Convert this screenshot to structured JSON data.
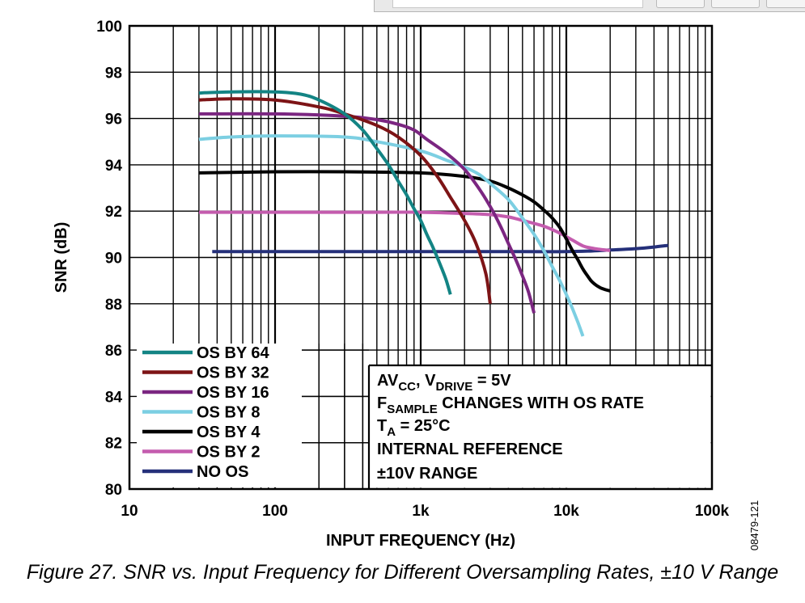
{
  "chart_data": {
    "type": "line",
    "xlabel": "INPUT FREQUENCY (Hz)",
    "ylabel": "SNR (dB)",
    "x_scale": "log",
    "xlim": [
      10,
      100000
    ],
    "ylim": [
      80,
      100
    ],
    "x_ticks": [
      {
        "value": 10,
        "label": "10"
      },
      {
        "value": 100,
        "label": "100"
      },
      {
        "value": 1000,
        "label": "1k"
      },
      {
        "value": 10000,
        "label": "10k"
      },
      {
        "value": 100000,
        "label": "100k"
      }
    ],
    "y_ticks": [
      {
        "value": 80,
        "label": "80"
      },
      {
        "value": 82,
        "label": "82"
      },
      {
        "value": 84,
        "label": "84"
      },
      {
        "value": 86,
        "label": "86"
      },
      {
        "value": 88,
        "label": "88"
      },
      {
        "value": 90,
        "label": "90"
      },
      {
        "value": 92,
        "label": "92"
      },
      {
        "value": 94,
        "label": "94"
      },
      {
        "value": 96,
        "label": "96"
      },
      {
        "value": 98,
        "label": "98"
      },
      {
        "value": 100,
        "label": "100"
      }
    ],
    "grid": true,
    "legend_position": "bottom-left",
    "series": [
      {
        "name": "OS BY 64",
        "color": "#138484",
        "x": [
          30,
          50,
          100,
          150,
          200,
          300,
          400,
          500,
          600,
          700,
          800,
          900,
          1000,
          1100,
          1200,
          1300,
          1400,
          1500,
          1600
        ],
        "y": [
          97.1,
          97.15,
          97.15,
          97.05,
          96.8,
          96.2,
          95.5,
          94.7,
          94.0,
          93.3,
          92.7,
          92.1,
          91.6,
          91.0,
          90.5,
          90.0,
          89.5,
          89.0,
          88.4
        ]
      },
      {
        "name": "OS BY 32",
        "color": "#7d1416",
        "x": [
          30,
          50,
          100,
          200,
          300,
          500,
          700,
          1000,
          1300,
          1600,
          2000,
          2400,
          2800,
          3000
        ],
        "y": [
          96.8,
          96.85,
          96.8,
          96.5,
          96.2,
          95.7,
          95.2,
          94.4,
          93.5,
          92.6,
          91.6,
          90.6,
          89.3,
          88.0
        ]
      },
      {
        "name": "OS BY 16",
        "color": "#7b2681",
        "x": [
          30,
          100,
          300,
          500,
          700,
          900,
          1100,
          1500,
          2000,
          2500,
          3000,
          3500,
          4000,
          4500,
          5000,
          5500,
          6000
        ],
        "y": [
          96.2,
          96.2,
          96.1,
          95.95,
          95.75,
          95.5,
          95.1,
          94.5,
          93.8,
          93.0,
          92.2,
          91.4,
          90.6,
          89.9,
          89.2,
          88.5,
          87.6
        ]
      },
      {
        "name": "OS BY 8",
        "color": "#7ccfe2",
        "x": [
          30,
          50,
          100,
          300,
          500,
          1000,
          1500,
          2000,
          2500,
          3000,
          4000,
          5000,
          6000,
          7000,
          8000,
          9000,
          10000,
          11000,
          12000,
          13000
        ],
        "y": [
          95.1,
          95.2,
          95.25,
          95.2,
          95.0,
          94.6,
          94.2,
          93.9,
          93.6,
          93.2,
          92.5,
          91.7,
          91.0,
          90.3,
          89.6,
          89.0,
          88.4,
          87.8,
          87.2,
          86.6
        ]
      },
      {
        "name": "OS BY 4",
        "color": "#000000",
        "x": [
          30,
          100,
          300,
          1000,
          2000,
          3000,
          4000,
          5000,
          6000,
          7000,
          8000,
          9000,
          10000,
          11000,
          12000,
          13000,
          14000,
          15000,
          17000,
          20000
        ],
        "y": [
          93.65,
          93.7,
          93.7,
          93.65,
          93.5,
          93.3,
          93.0,
          92.7,
          92.4,
          92.05,
          91.7,
          91.3,
          90.8,
          90.3,
          89.9,
          89.5,
          89.2,
          88.95,
          88.7,
          88.55
        ]
      },
      {
        "name": "OS BY 2",
        "color": "#c45cae",
        "x": [
          30,
          100,
          500,
          1000,
          2000,
          3000,
          4000,
          5000,
          7000,
          9000,
          11000,
          13000,
          15000,
          17000,
          20000
        ],
        "y": [
          91.95,
          91.95,
          91.95,
          91.95,
          91.9,
          91.85,
          91.75,
          91.6,
          91.35,
          91.05,
          90.75,
          90.5,
          90.4,
          90.35,
          90.3
        ]
      },
      {
        "name": "NO OS",
        "color": "#25307a",
        "x": [
          37,
          100,
          1000,
          5000,
          10000,
          15000,
          20000,
          30000,
          40000,
          50000
        ],
        "y": [
          90.25,
          90.25,
          90.25,
          90.25,
          90.25,
          90.28,
          90.32,
          90.38,
          90.45,
          90.52
        ]
      }
    ],
    "annotations": [
      "AV_CC, V_DRIVE = 5V",
      "F_SAMPLE CHANGES WITH OS RATE",
      "T_A = 25°C",
      "INTERNAL REFERENCE",
      "±10V RANGE"
    ]
  },
  "note": {
    "line1": {
      "a": "AV",
      "a_sub": "CC",
      "b": ", V",
      "b_sub": "DRIVE",
      "c": " = 5V"
    },
    "line2": {
      "a": "F",
      "a_sub": "SAMPLE",
      "b": " CHANGES WITH OS RATE"
    },
    "line3": {
      "a": "T",
      "a_sub": "A",
      "b": " = 25°C"
    },
    "line4": "INTERNAL REFERENCE",
    "line5": "±10V RANGE"
  },
  "figure_id": "08479-121",
  "caption": "Figure 27. SNR vs. Input Frequency for Different Oversampling Rates, ±10 V Range"
}
